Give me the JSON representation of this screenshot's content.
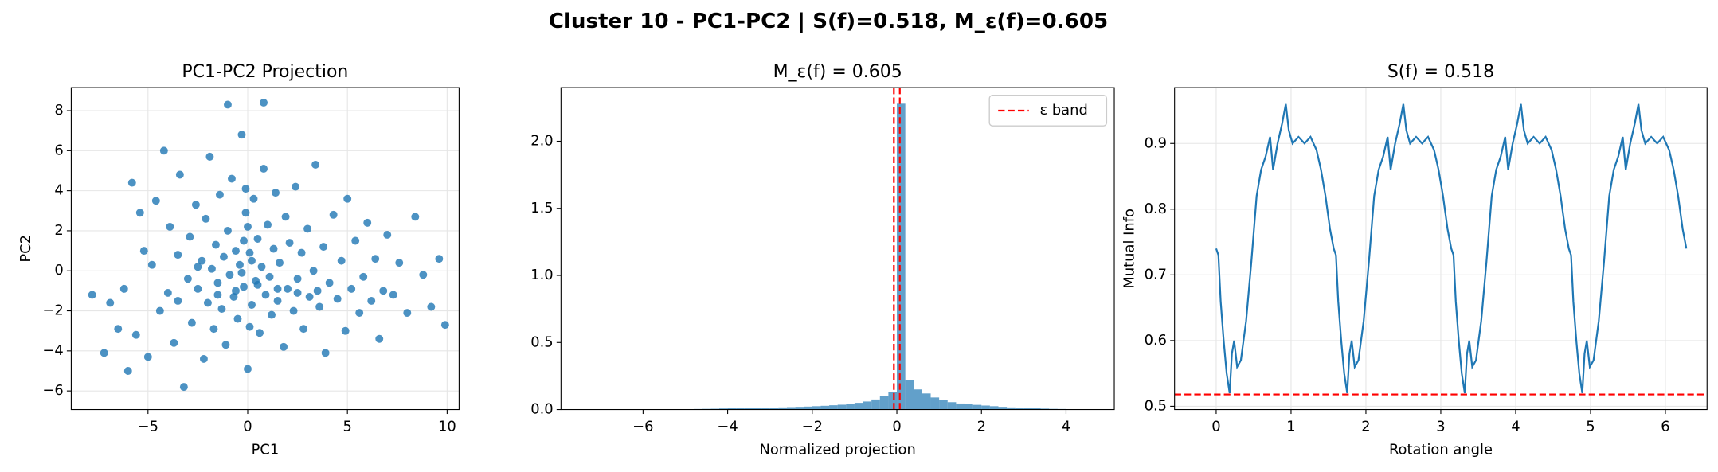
{
  "title": "Cluster 10 - PC1-PC2 | S(f)=0.518, M_ε(f)=0.605",
  "chart_data": [
    {
      "type": "scatter",
      "title": "PC1-PC2 Projection",
      "xlabel": "PC1",
      "ylabel": "PC2",
      "color": "#1f77b4",
      "grid": true,
      "xlim": [
        -8.85,
        10.6
      ],
      "ylim": [
        -6.93,
        9.15
      ],
      "xticks": [
        {
          "value": -5,
          "label": "−5"
        },
        0,
        5,
        10
      ],
      "yticks": [
        {
          "value": -6,
          "label": "−6"
        },
        {
          "value": -4,
          "label": "−4"
        },
        {
          "value": -2,
          "label": "−2"
        },
        0,
        2,
        4,
        6,
        8
      ],
      "x": [
        -7.8,
        -7.2,
        -6.9,
        -6.5,
        -6.2,
        -6,
        -5.8,
        -5.6,
        -5.4,
        -5.2,
        -5,
        -4.8,
        -4.6,
        -4.4,
        -4.2,
        -4,
        -3.9,
        -3.7,
        -3.5,
        -3.4,
        -3.2,
        -3,
        -2.9,
        -2.8,
        -2.6,
        -2.5,
        -2.3,
        -2.2,
        -2.1,
        -2,
        -1.9,
        -1.8,
        -1.7,
        -1.6,
        -1.5,
        -1.4,
        -1.3,
        -1.2,
        -1.1,
        -1,
        -0.9,
        -0.8,
        -0.7,
        -0.6,
        -0.5,
        -0.4,
        -0.3,
        -0.2,
        -0.1,
        0,
        0.1,
        0.2,
        0.3,
        0.4,
        0.5,
        0.6,
        0.7,
        0.8,
        0.9,
        1,
        1.1,
        1.2,
        1.3,
        1.4,
        1.5,
        1.6,
        1.8,
        1.9,
        2,
        2.1,
        2.3,
        2.4,
        2.5,
        2.7,
        2.8,
        3,
        3.1,
        3.3,
        3.4,
        3.6,
        3.8,
        3.9,
        4.1,
        4.3,
        4.5,
        4.7,
        4.9,
        5,
        5.2,
        5.4,
        5.6,
        5.8,
        6,
        6.2,
        6.4,
        6.6,
        6.8,
        7,
        7.3,
        7.6,
        8,
        8.4,
        8.8,
        9.2,
        9.6,
        9.9,
        -1,
        0.8,
        -0.3,
        0.2,
        -0.6,
        0.5,
        -0.2,
        1.5,
        -1.5,
        2.5,
        3.5,
        -2.5,
        -3.5,
        0,
        0.1,
        -0.1
      ],
      "values": [
        -1.2,
        -4.1,
        -1.6,
        -2.9,
        -0.9,
        -5,
        4.4,
        -3.2,
        2.9,
        1,
        -4.3,
        0.3,
        3.5,
        -2,
        6,
        -1.1,
        2.2,
        -3.6,
        0.8,
        4.8,
        -5.8,
        -0.4,
        1.7,
        -2.6,
        3.3,
        -0.9,
        0.5,
        -4.4,
        2.6,
        -1.6,
        5.7,
        0.1,
        -2.9,
        1.3,
        -0.6,
        3.8,
        -1.9,
        0.7,
        -3.7,
        2,
        -0.2,
        4.6,
        -1.3,
        1,
        -2.4,
        0.3,
        6.8,
        -0.8,
        2.9,
        -4.9,
        0.9,
        -1.7,
        3.6,
        -0.5,
        1.6,
        -3.1,
        0.2,
        5.1,
        -1.2,
        2.3,
        -0.3,
        -2.2,
        1.1,
        3.9,
        -1.5,
        0.4,
        -3.8,
        2.7,
        -0.9,
        1.4,
        -2,
        4.2,
        -0.4,
        0.9,
        -2.9,
        2.1,
        -1.3,
        0,
        5.3,
        -1.8,
        1.2,
        -4.1,
        -0.6,
        2.8,
        -1.4,
        0.5,
        -3,
        3.6,
        -0.9,
        1.5,
        -2.1,
        -0.3,
        2.4,
        -1.5,
        0.6,
        -3.4,
        -1,
        1.8,
        -1.2,
        0.4,
        -2.1,
        2.7,
        -0.2,
        -1.8,
        0.6,
        -2.7,
        8.3,
        8.4,
        -0.1,
        0.5,
        -1,
        -0.7,
        1.5,
        -0.9,
        -1.2,
        -1.1,
        -1,
        0.2,
        -1.5,
        2.2,
        -2.8,
        4.1
      ]
    },
    {
      "type": "histogram",
      "title": "M_ε(f) = 0.605",
      "xlabel": "Normalized projection",
      "color": "#1f77b4",
      "grid": false,
      "xlim": [
        -7.94,
        5.14
      ],
      "ylim": [
        0,
        2.4
      ],
      "xticks": [
        {
          "value": -6,
          "label": "−6"
        },
        {
          "value": -4,
          "label": "−4"
        },
        {
          "value": -2,
          "label": "−2"
        },
        0,
        2,
        4
      ],
      "yticks": [
        {
          "value": 0,
          "label": "0.0"
        },
        0.5,
        {
          "value": 1,
          "label": "1.0"
        },
        1.5,
        {
          "value": 2,
          "label": "2.0"
        }
      ],
      "bins": [
        -6.6,
        -6.4,
        -6.2,
        -6.0,
        -5.8,
        -5.6,
        -5.4,
        -5.2,
        -5.0,
        -4.8,
        -4.6,
        -4.4,
        -4.2,
        -4.0,
        -3.8,
        -3.6,
        -3.4,
        -3.2,
        -3.0,
        -2.8,
        -2.6,
        -2.4,
        -2.2,
        -2.0,
        -1.8,
        -1.6,
        -1.4,
        -1.2,
        -1.0,
        -0.8,
        -0.6,
        -0.4,
        -0.2,
        0.0,
        0.2,
        0.4,
        0.6,
        0.8,
        1.0,
        1.2,
        1.4,
        1.6,
        1.8,
        2.0,
        2.2,
        2.4,
        2.6,
        2.8,
        3.0,
        3.2,
        3.4,
        3.6,
        3.8,
        4.0,
        4.2,
        4.4,
        4.6
      ],
      "values": [
        0.001,
        0.001,
        0,
        0.001,
        0,
        0.001,
        0.002,
        0.002,
        0.003,
        0.004,
        0.005,
        0.006,
        0.008,
        0.01,
        0.01,
        0.012,
        0.012,
        0.014,
        0.015,
        0.016,
        0.018,
        0.02,
        0.022,
        0.025,
        0.028,
        0.032,
        0.036,
        0.042,
        0.05,
        0.06,
        0.075,
        0.1,
        0.13,
        2.28,
        0.22,
        0.15,
        0.12,
        0.09,
        0.07,
        0.055,
        0.045,
        0.04,
        0.035,
        0.03,
        0.025,
        0.02,
        0.016,
        0.013,
        0.011,
        0.009,
        0.007,
        0.005,
        0.004,
        0.003,
        0.002,
        0.001
      ],
      "vlines": {
        "name": "ε band",
        "color": "red",
        "values": [
          -0.07,
          0.07
        ]
      },
      "legend": "upper right"
    },
    {
      "type": "line",
      "title": "S(f) = 0.518",
      "xlabel": "Rotation angle",
      "ylabel": "Mutual Info",
      "color": "#1f77b4",
      "grid": true,
      "xlim": [
        -0.556,
        6.556
      ],
      "ylim": [
        0.495,
        0.985
      ],
      "xticks": [
        0,
        1,
        2,
        3,
        4,
        5,
        6
      ],
      "yticks": [
        0.5,
        0.6,
        0.7,
        0.8,
        0.9
      ],
      "hline": {
        "value": 0.518,
        "color": "red"
      },
      "x": [
        0,
        0.03,
        0.06,
        0.1,
        0.14,
        0.18,
        0.21,
        0.24,
        0.28,
        0.33,
        0.4,
        0.47,
        0.54,
        0.6,
        0.66,
        0.72,
        0.76,
        0.82,
        0.88,
        0.93,
        0.97,
        1.02,
        1.1,
        1.18,
        1.26,
        1.34,
        1.4,
        1.46,
        1.52,
        1.57,
        1.6,
        1.63,
        1.67,
        1.71,
        1.75,
        1.78,
        1.81,
        1.85,
        1.9,
        1.97,
        2.04,
        2.11,
        2.17,
        2.23,
        2.29,
        2.33,
        2.39,
        2.45,
        2.5,
        2.54,
        2.59,
        2.67,
        2.75,
        2.83,
        2.91,
        2.97,
        3.03,
        3.09,
        3.14,
        3.17,
        3.2,
        3.24,
        3.28,
        3.32,
        3.35,
        3.38,
        3.42,
        3.47,
        3.54,
        3.61,
        3.68,
        3.74,
        3.8,
        3.86,
        3.9,
        3.96,
        4.02,
        4.07,
        4.11,
        4.16,
        4.24,
        4.32,
        4.4,
        4.48,
        4.54,
        4.6,
        4.66,
        4.71,
        4.74,
        4.77,
        4.81,
        4.85,
        4.89,
        4.92,
        4.95,
        4.99,
        5.04,
        5.11,
        5.18,
        5.25,
        5.31,
        5.37,
        5.43,
        5.47,
        5.53,
        5.59,
        5.64,
        5.68,
        5.73,
        5.81,
        5.89,
        5.97,
        6.05,
        6.11,
        6.17,
        6.23,
        6.28
      ],
      "values": [
        0.74,
        0.73,
        0.66,
        0.6,
        0.55,
        0.52,
        0.58,
        0.6,
        0.56,
        0.57,
        0.63,
        0.72,
        0.82,
        0.86,
        0.88,
        0.91,
        0.86,
        0.9,
        0.93,
        0.96,
        0.92,
        0.9,
        0.91,
        0.9,
        0.91,
        0.89,
        0.86,
        0.82,
        0.77,
        0.74,
        0.73,
        0.66,
        0.6,
        0.55,
        0.52,
        0.58,
        0.6,
        0.56,
        0.57,
        0.63,
        0.72,
        0.82,
        0.86,
        0.88,
        0.91,
        0.86,
        0.9,
        0.93,
        0.96,
        0.92,
        0.9,
        0.91,
        0.9,
        0.91,
        0.89,
        0.86,
        0.82,
        0.77,
        0.74,
        0.73,
        0.66,
        0.6,
        0.55,
        0.52,
        0.58,
        0.6,
        0.56,
        0.57,
        0.63,
        0.72,
        0.82,
        0.86,
        0.88,
        0.91,
        0.86,
        0.9,
        0.93,
        0.96,
        0.92,
        0.9,
        0.91,
        0.9,
        0.91,
        0.89,
        0.86,
        0.82,
        0.77,
        0.74,
        0.73,
        0.66,
        0.6,
        0.55,
        0.52,
        0.58,
        0.6,
        0.56,
        0.57,
        0.63,
        0.72,
        0.82,
        0.86,
        0.88,
        0.91,
        0.86,
        0.9,
        0.93,
        0.96,
        0.92,
        0.9,
        0.91,
        0.9,
        0.91,
        0.89,
        0.86,
        0.82,
        0.77,
        0.74
      ]
    }
  ]
}
